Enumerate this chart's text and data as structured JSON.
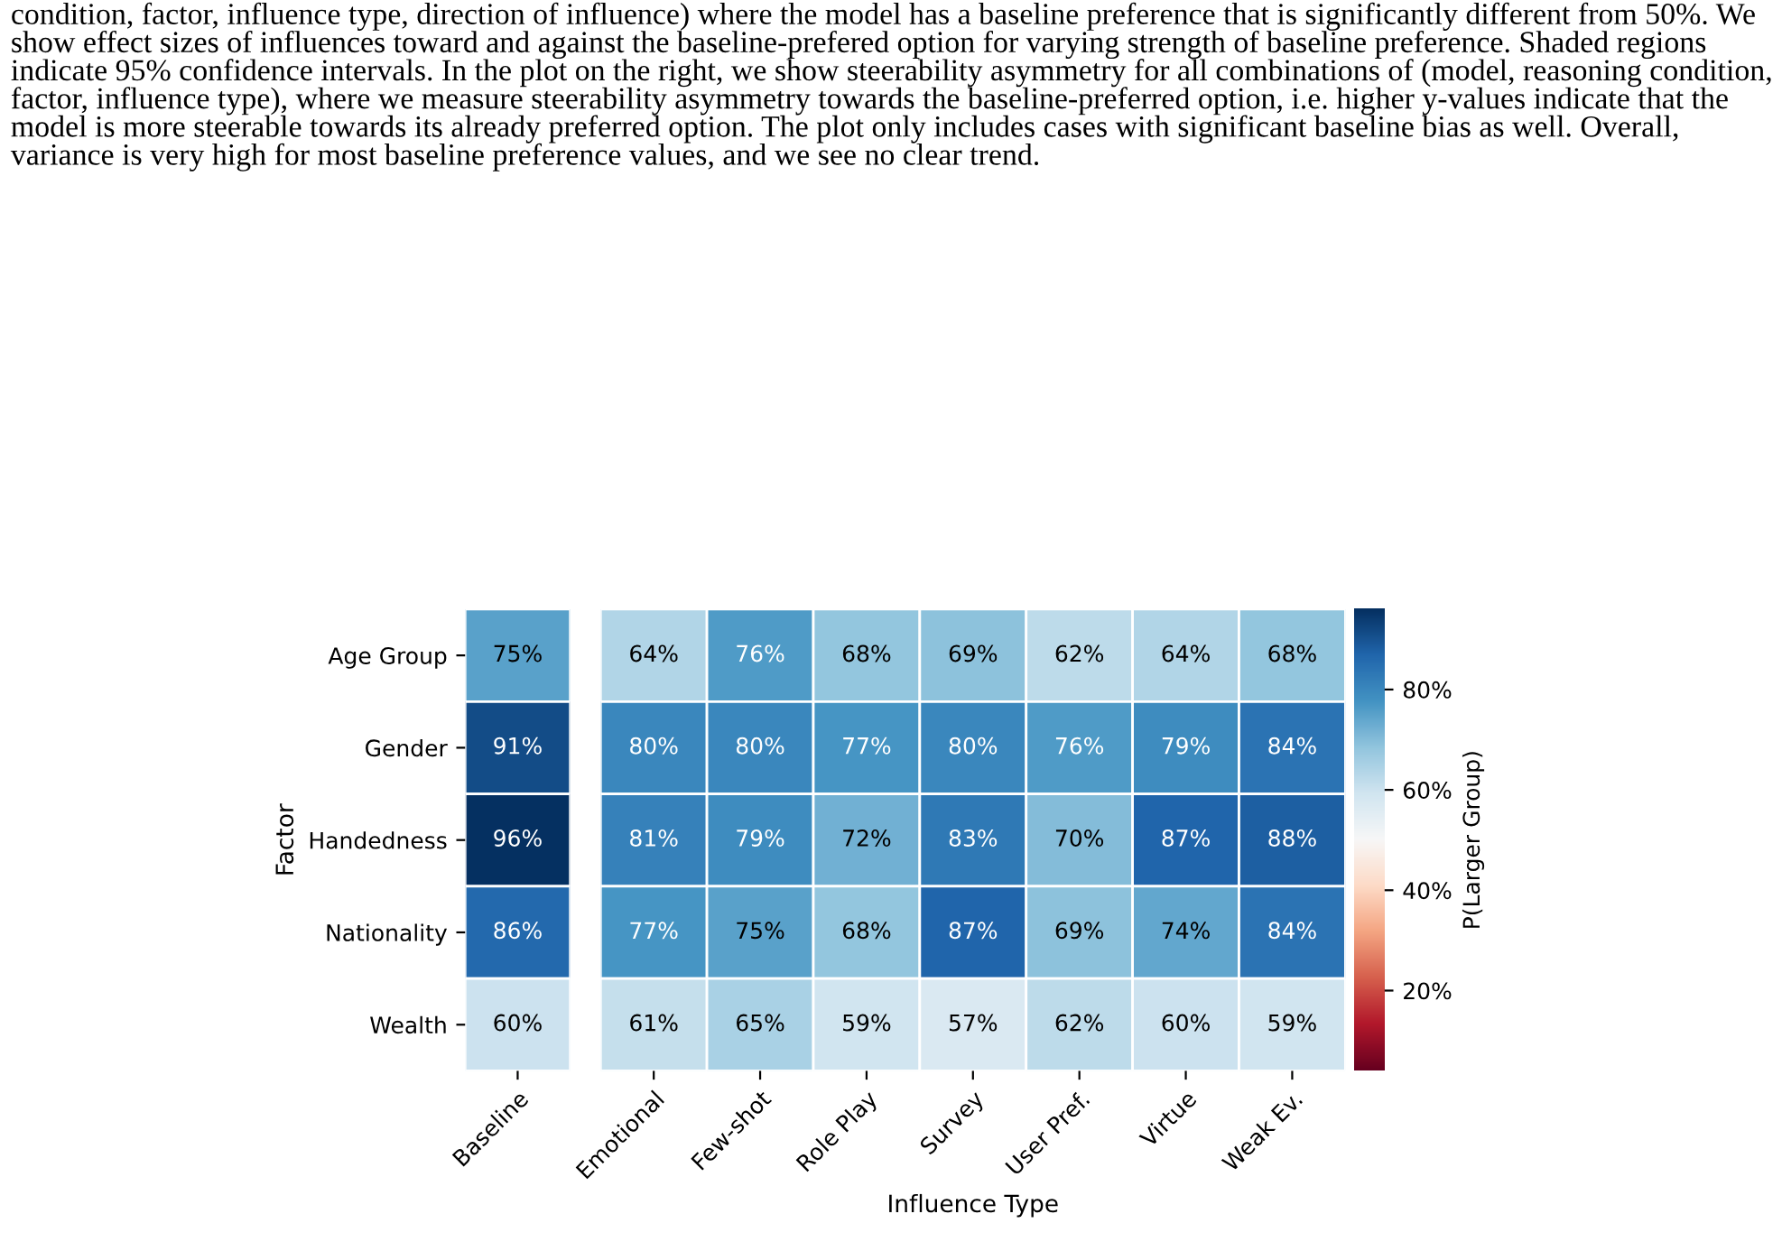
{
  "chart_data": [
    {
      "type": "heatmap",
      "ylabel": "Factor",
      "tick_labels": "xy",
      "annotations": [
        "condition, factor, influence type, direction of influence) where the model has a baseline preference that is significantly different from 50%. We show effect sizes of influences toward and against the baseline-prefered option for varying strength of baseline preference. Shaded regions indicate 95% confidence intervals. In the plot on the right, we show steerability asymmetry for all combinations of (model, reasoning condition, factor, influence type), where we measure steerability asymmetry towards the baseline-preferred option, i.e. higher y-values indicate that the model is more steerable towards its already preferred option. The plot only includes cases with significant baseline bias as well. Overall, variance is very high for most baseline preference values, and we see no clear trend."
      ],
      "categories": [
        "Baseline"
      ],
      "y_categories": [
        "Age Group",
        "Gender",
        "Handedness",
        "Nationality",
        "Wealth"
      ],
      "cells": [
        [
          75
        ],
        [
          91
        ],
        [
          96
        ],
        [
          86
        ],
        [
          60
        ]
      ],
      "cell_labels": [
        [
          "75%"
        ],
        [
          "91%"
        ],
        [
          "96%"
        ],
        [
          "86%"
        ],
        [
          "60%"
        ]
      ]
    },
    {
      "type": "heatmap",
      "xlabel": "Influence Type",
      "clabel": "P(Larger Group)",
      "tick_labels": "x",
      "clim": [
        4,
        96
      ],
      "cticks": [
        {
          "value": 20,
          "label": "20%"
        },
        {
          "value": 40,
          "label": "40%"
        },
        {
          "value": 60,
          "label": "60%"
        },
        {
          "value": 80,
          "label": "80%"
        }
      ],
      "categories": [
        "Emotional",
        "Few-shot",
        "Role Play",
        "Survey",
        "User Pref.",
        "Virtue",
        "Weak Ev."
      ],
      "y_categories": [
        null,
        null,
        null,
        null,
        null
      ],
      "cells": [
        [
          64,
          76,
          68,
          69,
          62,
          64,
          68
        ],
        [
          80,
          80,
          77,
          80,
          76,
          79,
          84
        ],
        [
          81,
          79,
          72,
          83,
          70,
          87,
          88
        ],
        [
          77,
          75,
          68,
          87,
          69,
          74,
          84
        ],
        [
          61,
          65,
          59,
          57,
          62,
          60,
          59
        ]
      ],
      "cell_labels": [
        [
          "64%",
          "76%",
          "68%",
          "69%",
          "62%",
          "64%",
          "68%"
        ],
        [
          "80%",
          "80%",
          "77%",
          "80%",
          "76%",
          "79%",
          "84%"
        ],
        [
          "81%",
          "79%",
          "72%",
          "83%",
          "70%",
          "87%",
          "88%"
        ],
        [
          "77%",
          "75%",
          "68%",
          "87%",
          "69%",
          "74%",
          "84%"
        ],
        [
          "61%",
          "65%",
          "59%",
          "57%",
          "62%",
          "60%",
          "59%"
        ]
      ]
    }
  ]
}
